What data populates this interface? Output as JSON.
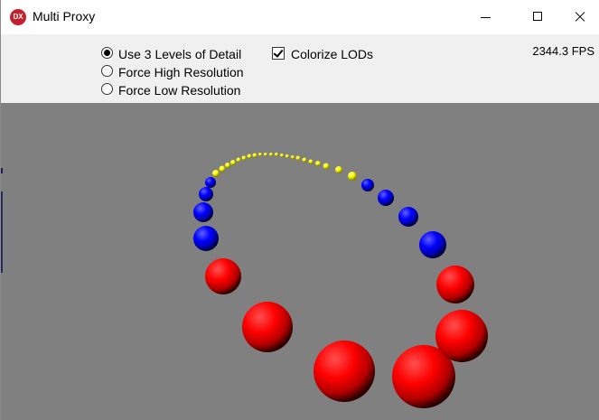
{
  "window": {
    "title": "Multi Proxy",
    "app_icon_text": "DX"
  },
  "controls": {
    "lod_options": [
      {
        "label": "Use 3 Levels of Detail",
        "selected": true
      },
      {
        "label": "Force High Resolution",
        "selected": false
      },
      {
        "label": "Force Low Resolution",
        "selected": false
      }
    ],
    "colorize": {
      "label": "Colorize LODs",
      "checked": true
    },
    "fps": "2344.3 FPS"
  },
  "viewport": {
    "background": "#808080",
    "lod_colors": {
      "high": "#ff0000",
      "medium": "#0000ff",
      "low": "#ffff00"
    }
  }
}
